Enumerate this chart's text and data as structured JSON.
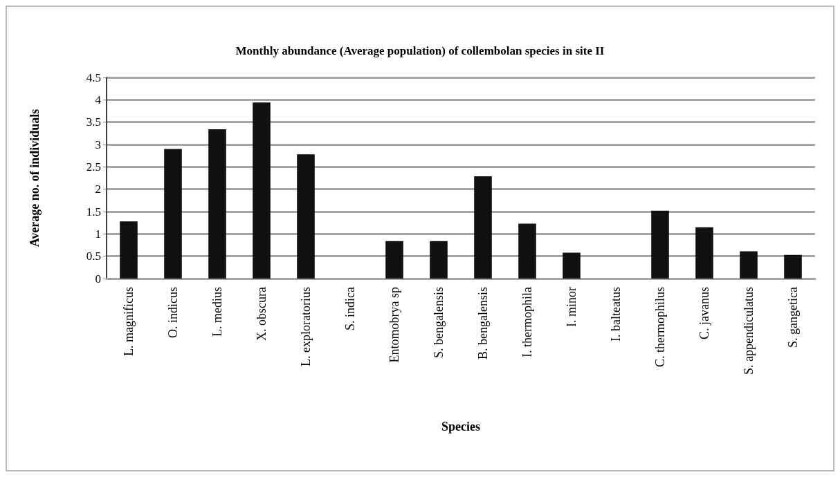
{
  "chart_data": {
    "type": "bar",
    "title": "Monthly abundance (Average population) of collembolan species in site II",
    "xlabel": "Species",
    "ylabel": "Average no. of individuals",
    "categories": [
      "L. magnificus",
      "O. indicus",
      "L. medius",
      "X. obscura",
      "L. exploratorius",
      "S. indica",
      "Entomobrya sp",
      "S. bengalensis",
      "B. bengalensis",
      "I. thermophila",
      "I. minor",
      "I. balteatus",
      "C. thermophilus",
      "C. javanus",
      "S. appendiculatus",
      "S. gangetica"
    ],
    "values": [
      1.28,
      2.9,
      3.34,
      3.94,
      2.78,
      0,
      0.84,
      0.84,
      2.29,
      1.23,
      0.58,
      0,
      1.52,
      1.15,
      0.61,
      0.53
    ],
    "color": "#111111",
    "ylim": [
      0,
      4.5
    ],
    "yticks": [
      0,
      0.5,
      1,
      1.5,
      2,
      2.5,
      3,
      3.5,
      4,
      4.5
    ],
    "grid": "y"
  }
}
